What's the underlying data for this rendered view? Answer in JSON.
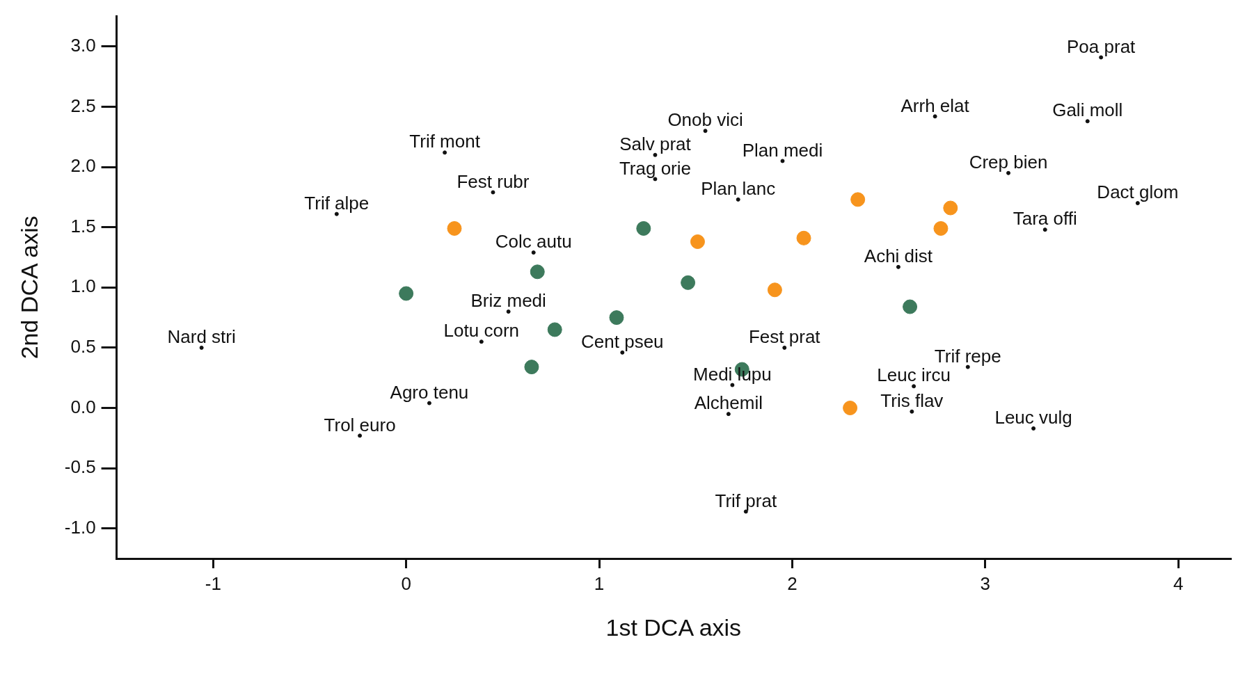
{
  "chart_data": {
    "type": "scatter",
    "xlabel": "1st DCA axis",
    "ylabel": "2nd DCA axis",
    "xlim": [
      -1.5,
      4.27
    ],
    "ylim": [
      -1.25,
      3.25
    ],
    "xticks": [
      -1,
      0,
      1,
      2,
      3,
      4
    ],
    "yticks": [
      {
        "value": -1,
        "label": "-1.0"
      },
      -0.5,
      {
        "value": 0,
        "label": "0.0"
      },
      0.5,
      {
        "value": 1,
        "label": "1.0"
      },
      1.5,
      {
        "value": 2,
        "label": "2.0"
      },
      2.5,
      {
        "value": 3,
        "label": "3.0"
      }
    ],
    "grid": false,
    "legend": false,
    "marker": "circle",
    "series": [
      {
        "color": "#f7941d",
        "x": [
          0.25,
          1.51,
          2.06,
          2.34,
          2.82,
          2.77,
          1.91,
          2.3
        ],
        "values": [
          1.49,
          1.38,
          1.41,
          1.73,
          1.66,
          1.49,
          0.98,
          0.0
        ]
      },
      {
        "color": "#3d7a5c",
        "x": [
          1.23,
          0.68,
          0.0,
          1.46,
          0.77,
          1.09,
          0.65,
          1.74,
          2.61
        ],
        "values": [
          1.49,
          1.13,
          0.95,
          1.04,
          0.65,
          0.75,
          0.34,
          0.32,
          0.84
        ]
      },
      {
        "color": "#111111",
        "marker": "circle",
        "x": [
          3.6,
          2.74,
          3.53,
          1.55,
          0.2,
          1.29,
          1.95,
          3.12,
          1.29,
          0.45,
          1.72,
          3.79,
          -0.36,
          3.31,
          0.66,
          2.55,
          0.53,
          0.39,
          -1.06,
          1.12,
          1.96,
          2.91,
          1.69,
          2.63,
          0.12,
          2.62,
          1.67,
          3.25,
          -0.24,
          1.76
        ],
        "values": [
          2.91,
          2.42,
          2.38,
          2.3,
          2.12,
          2.1,
          2.05,
          1.95,
          1.9,
          1.79,
          1.73,
          1.7,
          1.61,
          1.48,
          1.29,
          1.17,
          0.8,
          0.55,
          0.5,
          0.46,
          0.5,
          0.34,
          0.19,
          0.18,
          0.04,
          -0.03,
          -0.05,
          -0.17,
          -0.23,
          -0.86
        ],
        "value_labels": [
          "Poa prat",
          "Arrh elat",
          "Gali moll",
          "Onob vici",
          "Trif mont",
          "Salv prat",
          "Plan medi",
          "Crep bien",
          "Trag orie",
          "Fest rubr",
          "Plan lanc",
          "Dact glom",
          "Trif alpe",
          "Tara offi",
          "Colc autu",
          "Achi dist",
          "Briz medi",
          "Lotu corn",
          "Nard stri",
          "Cent pseu",
          "Fest prat",
          "Trif repe",
          "Medi lupu",
          "Leuc ircu",
          "Agro tenu",
          "Tris flav",
          "Alchemil",
          "Leuc vulg",
          "Trol euro",
          "Trif prat"
        ]
      }
    ]
  }
}
